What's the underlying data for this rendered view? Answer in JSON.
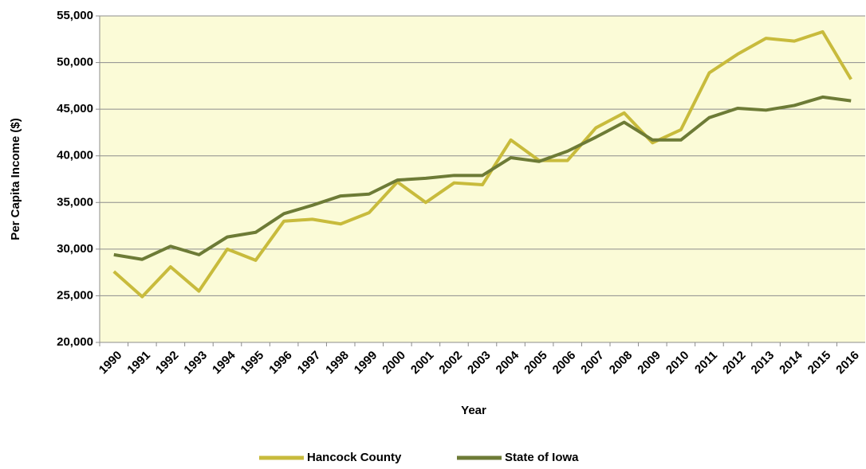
{
  "chart_data": {
    "type": "line",
    "x_label": "Year",
    "y_label": "Per Capita Income ($)",
    "categories": [
      "1990",
      "1991",
      "1992",
      "1993",
      "1994",
      "1995",
      "1996",
      "1997",
      "1998",
      "1999",
      "2000",
      "2001",
      "2002",
      "2003",
      "2004",
      "2005",
      "2006",
      "2007",
      "2008",
      "2009",
      "2010",
      "2011",
      "2012",
      "2013",
      "2014",
      "2015",
      "2016"
    ],
    "series": [
      {
        "name": "Hancock County",
        "color": "#c8bb3c",
        "values": [
          27600,
          24900,
          28100,
          25500,
          30000,
          28800,
          33000,
          33200,
          32700,
          33900,
          37200,
          35000,
          37100,
          36900,
          41700,
          39500,
          39500,
          43000,
          44600,
          41400,
          42800,
          48900,
          50900,
          52600,
          52300,
          53300,
          48200
        ]
      },
      {
        "name": "State of Iowa",
        "color": "#6d7b36",
        "values": [
          29400,
          28900,
          30300,
          29400,
          31300,
          31800,
          33800,
          34700,
          35700,
          35900,
          37400,
          37600,
          37900,
          37900,
          39800,
          39400,
          40500,
          42000,
          43600,
          41700,
          41700,
          44100,
          45100,
          44900,
          45400,
          46300,
          45900
        ]
      }
    ],
    "ylim": [
      20000,
      55000
    ],
    "yticks": [
      {
        "value": 20000,
        "label": "20,000"
      },
      {
        "value": 25000,
        "label": "25,000"
      },
      {
        "value": 30000,
        "label": "30,000"
      },
      {
        "value": 35000,
        "label": "35,000"
      },
      {
        "value": 40000,
        "label": "40,000"
      },
      {
        "value": 45000,
        "label": "45,000"
      },
      {
        "value": 50000,
        "label": "50,000"
      },
      {
        "value": 55000,
        "label": "55,000"
      }
    ],
    "grid": true,
    "legend": "bottom",
    "plot_background": "#fbfbd7"
  }
}
